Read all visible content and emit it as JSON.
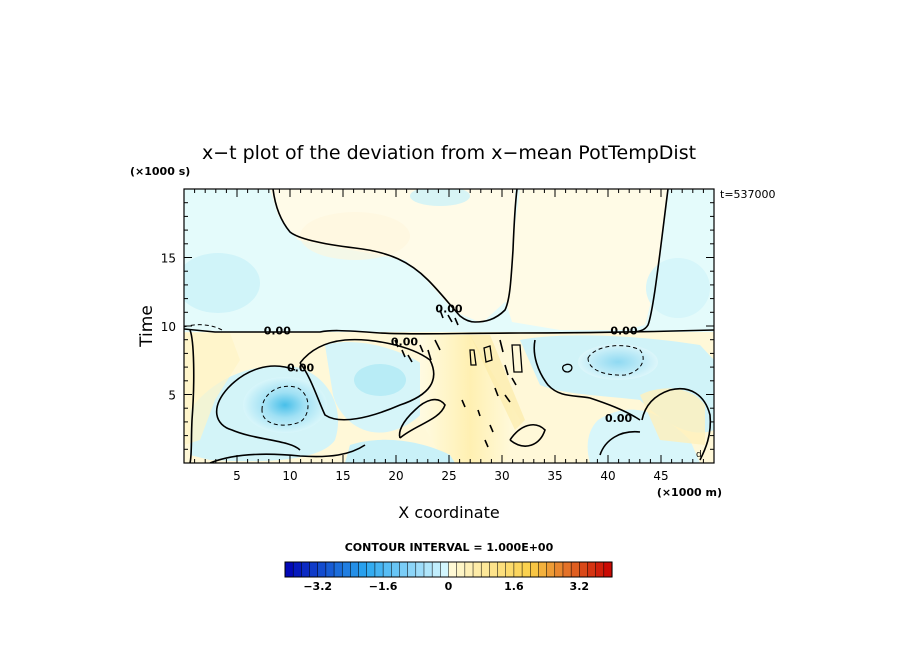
{
  "chart_data": {
    "type": "contour",
    "title": "x−t plot of the deviation from x−mean PotTempDist",
    "xlabel": "X coordinate",
    "ylabel": "Time",
    "xunit": "(×1000 m)",
    "yunit": "(×1000 s)",
    "time_stamp": "t=537000",
    "corner_mark": "d",
    "xlim": [
      0,
      50
    ],
    "ylim": [
      0,
      20
    ],
    "xticks": [
      5,
      10,
      15,
      20,
      25,
      30,
      35,
      40,
      45
    ],
    "yticks": [
      5,
      10,
      15
    ],
    "xtick_labels": [
      "5",
      "10",
      "15",
      "20",
      "25",
      "30",
      "35",
      "40",
      "45"
    ],
    "ytick_labels": [
      "5",
      "10",
      "15"
    ],
    "contour_interval_text": "CONTOUR INTERVAL = 1.000E+00",
    "contour_labels": [
      {
        "text": "0.00",
        "x": 8.8,
        "y": 9.6
      },
      {
        "text": "0.00",
        "x": 11.0,
        "y": 6.9
      },
      {
        "text": "0.00",
        "x": 25.0,
        "y": 11.2
      },
      {
        "text": "0.00",
        "x": 20.8,
        "y": 8.8
      },
      {
        "text": "0.00",
        "x": 41.5,
        "y": 9.6
      },
      {
        "text": "0.00",
        "x": 41.0,
        "y": 3.2
      }
    ],
    "colorbar": {
      "min": -4.0,
      "max": 4.0,
      "step": 0.2,
      "tick_values": [
        -3.2,
        -1.6,
        0,
        1.6,
        3.2
      ],
      "tick_labels": [
        "−3.2",
        "−1.6",
        "0",
        "1.6",
        "3.2"
      ],
      "colors": {
        "negative_strong": "#0000b4",
        "negative_mid": "#2aa8f0",
        "negative_weak": "#dcfaff",
        "positive_weak": "#fffbdc",
        "positive_mid": "#fbd048",
        "positive_strong": "#c80000"
      }
    },
    "field_colors": {
      "upper_cool": "#e4fbfb",
      "upper_warm": "#fffbe8",
      "lower_base": "#fff8d8",
      "cool_patch": "#c8f0f8",
      "cool_core": "#58c8ec",
      "warm_patch": "#fff0b0"
    }
  }
}
